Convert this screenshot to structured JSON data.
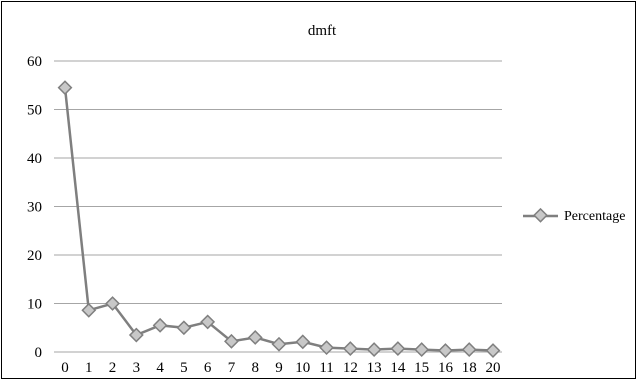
{
  "chart_data": {
    "type": "line",
    "title": "dmft",
    "xlabel": "",
    "ylabel": "",
    "ylim": [
      0,
      60
    ],
    "yticks": [
      0,
      10,
      20,
      30,
      40,
      50,
      60
    ],
    "grid": true,
    "legend_position": "right",
    "categories": [
      "0",
      "1",
      "2",
      "3",
      "4",
      "5",
      "6",
      "7",
      "8",
      "9",
      "10",
      "11",
      "12",
      "13",
      "14",
      "15",
      "16",
      "18",
      "20"
    ],
    "series": [
      {
        "name": "Percentage",
        "color": "#7f7f7f",
        "marker_fill": "#c8c8c8",
        "values": [
          54.5,
          8.6,
          10,
          3.5,
          5.5,
          5,
          6.2,
          2.2,
          3,
          1.6,
          2.1,
          0.9,
          0.7,
          0.5,
          0.7,
          0.5,
          0.3,
          0.5,
          0.3
        ]
      }
    ]
  }
}
